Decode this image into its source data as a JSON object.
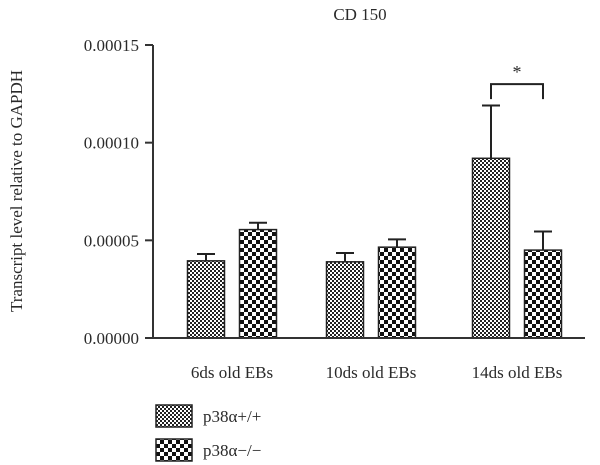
{
  "chart_data": {
    "type": "bar",
    "title": "CD 150",
    "xlabel": "",
    "ylabel": "Transcript level relative to GAPDH",
    "categories": [
      "6ds old EBs",
      "10ds old EBs",
      "14ds old EBs"
    ],
    "ylim": [
      0,
      0.00015
    ],
    "yticks": [
      "0.00000",
      "0.00005",
      "0.00010",
      "0.00015"
    ],
    "series": [
      {
        "name": "p38α+/+",
        "pattern": "fine-checker",
        "values": [
          3.95e-05,
          3.9e-05,
          9.2e-05
        ],
        "errors": [
          3.5e-06,
          4.5e-06,
          2.7e-05
        ]
      },
      {
        "name": "p38α−/−",
        "pattern": "coarse-checker",
        "values": [
          5.55e-05,
          4.65e-05,
          4.5e-05
        ],
        "errors": [
          3.5e-06,
          4e-06,
          9.5e-06
        ]
      }
    ],
    "annotations": [
      {
        "text": "*",
        "category": "14ds old EBs",
        "between_series": [
          0,
          1
        ],
        "level": 0.00013
      }
    ],
    "legend_position": "bottom-left",
    "grid": false
  }
}
